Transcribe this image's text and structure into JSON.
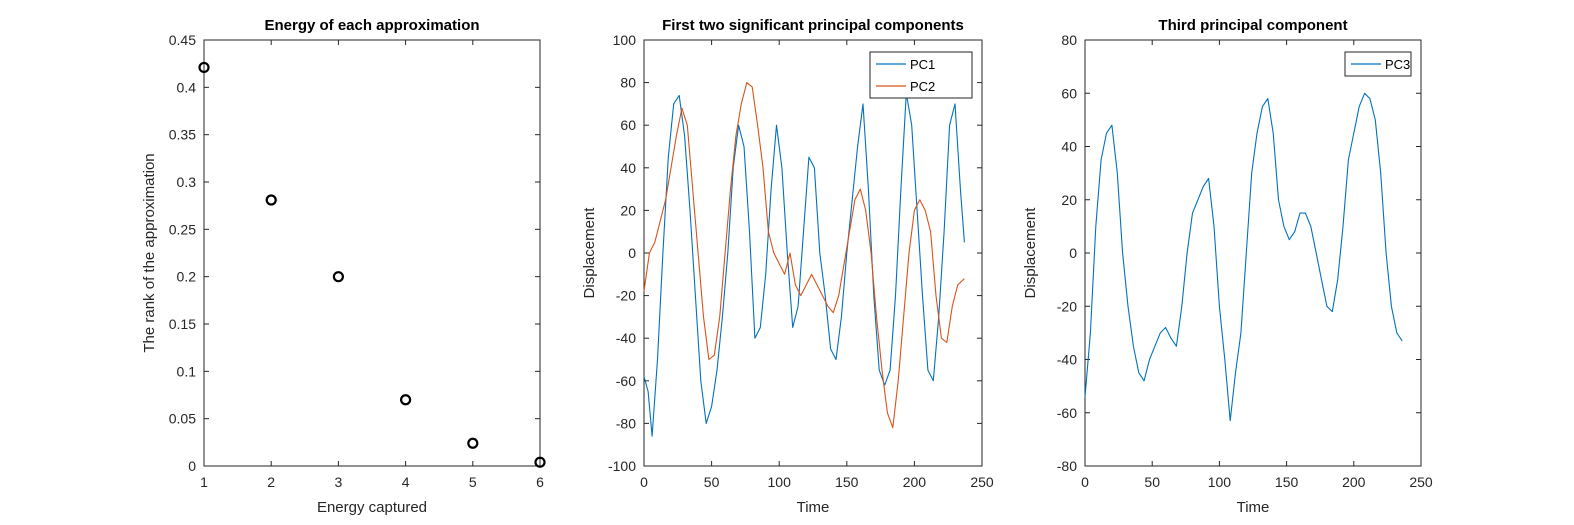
{
  "chart_data": [
    {
      "type": "scatter",
      "title": "Energy of each approximation",
      "xlabel": "Energy captured",
      "ylabel": "The rank of the approximation",
      "xlim": [
        1,
        6
      ],
      "ylim": [
        0,
        0.45
      ],
      "xticks": [
        "1",
        "2",
        "3",
        "4",
        "5",
        "6"
      ],
      "yticks": [
        "0",
        "0.05",
        "0.1",
        "0.15",
        "0.2",
        "0.25",
        "0.3",
        "0.35",
        "0.4",
        "0.45"
      ],
      "marker": "circle",
      "color": "#000000",
      "x": [
        1,
        2,
        3,
        4,
        5,
        6
      ],
      "y": [
        0.421,
        0.281,
        0.2,
        0.07,
        0.024,
        0.004
      ]
    },
    {
      "type": "line",
      "title": "First two significant principal components",
      "xlabel": "Time",
      "ylabel": "Displacement",
      "xlim": [
        0,
        250
      ],
      "ylim": [
        -100,
        100
      ],
      "xticks": [
        "0",
        "50",
        "100",
        "150",
        "200",
        "250"
      ],
      "yticks": [
        "-100",
        "-80",
        "-60",
        "-40",
        "-20",
        "0",
        "20",
        "40",
        "60",
        "80",
        "100"
      ],
      "legend_position": "top-right",
      "series": [
        {
          "name": "PC1",
          "color": "#0072BD",
          "x": [
            0,
            3,
            6,
            10,
            14,
            18,
            22,
            26,
            30,
            34,
            38,
            42,
            46,
            50,
            54,
            58,
            62,
            66,
            70,
            74,
            78,
            82,
            86,
            90,
            94,
            98,
            102,
            106,
            110,
            114,
            118,
            122,
            126,
            130,
            134,
            138,
            142,
            146,
            150,
            154,
            158,
            162,
            166,
            170,
            174,
            178,
            182,
            186,
            190,
            194,
            198,
            202,
            206,
            210,
            214,
            218,
            222,
            226,
            230,
            234,
            237
          ],
          "y": [
            -58,
            -65,
            -86,
            -50,
            0,
            45,
            70,
            74,
            55,
            20,
            -20,
            -60,
            -80,
            -72,
            -55,
            -30,
            0,
            40,
            60,
            50,
            10,
            -40,
            -35,
            -10,
            30,
            60,
            40,
            0,
            -35,
            -25,
            10,
            45,
            40,
            0,
            -20,
            -45,
            -50,
            -30,
            0,
            25,
            50,
            70,
            30,
            -20,
            -55,
            -62,
            -55,
            -20,
            30,
            75,
            60,
            20,
            -20,
            -55,
            -60,
            -30,
            10,
            60,
            70,
            30,
            5
          ]
        },
        {
          "name": "PC2",
          "color": "#D95319",
          "x": [
            0,
            4,
            8,
            12,
            16,
            20,
            24,
            28,
            32,
            36,
            40,
            44,
            48,
            52,
            56,
            60,
            64,
            68,
            72,
            76,
            80,
            84,
            88,
            92,
            96,
            100,
            104,
            108,
            112,
            116,
            120,
            124,
            128,
            132,
            136,
            140,
            144,
            148,
            152,
            156,
            160,
            164,
            168,
            172,
            176,
            180,
            184,
            188,
            192,
            196,
            200,
            204,
            208,
            212,
            216,
            220,
            224,
            228,
            232,
            237
          ],
          "y": [
            -18,
            0,
            5,
            15,
            25,
            40,
            55,
            68,
            60,
            30,
            0,
            -30,
            -50,
            -48,
            -30,
            0,
            30,
            55,
            70,
            80,
            78,
            60,
            40,
            10,
            0,
            -5,
            -10,
            0,
            -15,
            -20,
            -15,
            -10,
            -15,
            -20,
            -25,
            -28,
            -20,
            -5,
            10,
            25,
            30,
            20,
            0,
            -30,
            -55,
            -75,
            -82,
            -60,
            -30,
            0,
            20,
            25,
            20,
            10,
            -20,
            -40,
            -42,
            -25,
            -15,
            -12
          ]
        }
      ]
    },
    {
      "type": "line",
      "title": "Third principal component",
      "xlabel": "Time",
      "ylabel": "Displacement",
      "xlim": [
        0,
        250
      ],
      "ylim": [
        -80,
        80
      ],
      "xticks": [
        "0",
        "50",
        "100",
        "150",
        "200",
        "250"
      ],
      "yticks": [
        "-80",
        "-60",
        "-40",
        "-20",
        "0",
        "20",
        "40",
        "60",
        "80"
      ],
      "legend_position": "top-right",
      "series": [
        {
          "name": "PC3",
          "color": "#0072BD",
          "x": [
            0,
            4,
            8,
            12,
            16,
            20,
            24,
            28,
            32,
            36,
            40,
            44,
            48,
            52,
            56,
            60,
            64,
            68,
            72,
            76,
            80,
            84,
            88,
            92,
            96,
            100,
            104,
            108,
            112,
            116,
            120,
            124,
            128,
            132,
            136,
            140,
            144,
            148,
            152,
            156,
            160,
            164,
            168,
            172,
            176,
            180,
            184,
            188,
            192,
            196,
            200,
            204,
            208,
            212,
            216,
            220,
            224,
            228,
            232,
            236
          ],
          "y": [
            -54,
            -30,
            10,
            35,
            45,
            48,
            30,
            0,
            -20,
            -35,
            -45,
            -48,
            -40,
            -35,
            -30,
            -28,
            -32,
            -35,
            -20,
            0,
            15,
            20,
            25,
            28,
            10,
            -20,
            -40,
            -63,
            -45,
            -30,
            0,
            30,
            45,
            55,
            58,
            45,
            20,
            10,
            5,
            8,
            15,
            15,
            10,
            0,
            -10,
            -20,
            -22,
            -10,
            10,
            35,
            45,
            55,
            60,
            58,
            50,
            30,
            0,
            -20,
            -30,
            -33
          ]
        }
      ]
    }
  ]
}
